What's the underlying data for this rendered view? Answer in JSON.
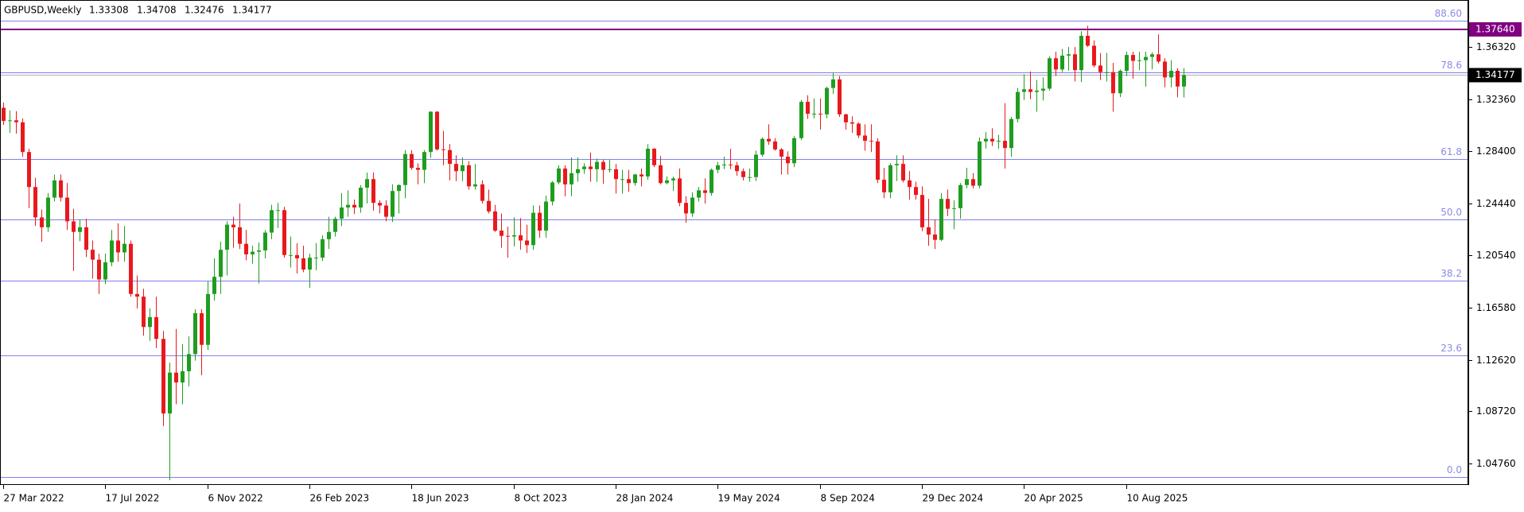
{
  "chart_data": {
    "type": "candlestick",
    "title": "GBPUSD,Weekly",
    "up_color": "#1f9d1f",
    "down_color": "#e8191c",
    "categories": [
      "27 Mar 2022",
      null,
      null,
      null,
      null,
      null,
      null,
      null,
      null,
      null,
      null,
      null,
      null,
      null,
      null,
      null,
      "17 Jul 2022",
      null,
      null,
      null,
      null,
      null,
      null,
      null,
      null,
      null,
      null,
      null,
      null,
      null,
      null,
      null,
      "6 Nov 2022",
      null,
      null,
      null,
      null,
      null,
      null,
      null,
      null,
      null,
      null,
      null,
      null,
      null,
      null,
      null,
      "26 Feb 2023",
      null,
      null,
      null,
      null,
      null,
      null,
      null,
      null,
      null,
      null,
      null,
      null,
      null,
      null,
      null,
      "18 Jun 2023",
      null,
      null,
      null,
      null,
      null,
      null,
      null,
      null,
      null,
      null,
      null,
      null,
      null,
      null,
      null,
      "8 Oct 2023",
      null,
      null,
      null,
      null,
      null,
      null,
      null,
      null,
      null,
      null,
      null,
      null,
      null,
      null,
      null,
      "28 Jan 2024",
      null,
      null,
      null,
      null,
      null,
      null,
      null,
      null,
      null,
      null,
      null,
      null,
      null,
      null,
      null,
      "19 May 2024",
      null,
      null,
      null,
      null,
      null,
      null,
      null,
      null,
      null,
      null,
      null,
      null,
      null,
      null,
      null,
      "8 Sep 2024",
      null,
      null,
      null,
      null,
      null,
      null,
      null,
      null,
      null,
      null,
      null,
      null,
      null,
      null,
      null,
      "29 Dec 2024",
      null,
      null,
      null,
      null,
      null,
      null,
      null,
      null,
      null,
      null,
      null,
      null,
      null,
      null,
      null,
      "20 Apr 2025",
      null,
      null,
      null,
      null,
      null,
      null,
      null,
      null,
      null,
      null,
      null,
      null,
      null,
      null,
      null,
      "10 Aug 2025",
      null,
      null,
      null,
      null,
      null,
      null,
      null,
      null,
      null
    ],
    "open": [
      1.317,
      1.307,
      1.3075,
      1.306,
      1.2835,
      1.257,
      1.234,
      1.2265,
      1.249,
      1.262,
      1.249,
      1.231,
      1.223,
      1.2265,
      1.2095,
      1.202,
      1.187,
      1.2,
      1.2165,
      1.2075,
      1.214,
      1.176,
      1.174,
      1.151,
      1.1585,
      1.142,
      1.0855,
      1.1165,
      1.109,
      1.1175,
      1.1305,
      1.1615,
      1.1375,
      1.176,
      1.189,
      1.2095,
      1.2285,
      1.2265,
      1.214,
      1.206,
      1.208,
      1.209,
      1.2225,
      1.2395,
      1.2395,
      1.2055,
      1.2055,
      1.203,
      1.1945,
      1.2035,
      1.2035,
      1.2175,
      1.223,
      1.233,
      1.2415,
      1.2435,
      1.2415,
      1.2565,
      1.263,
      1.245,
      1.243,
      1.2345,
      1.254,
      1.2585,
      1.282,
      1.2715,
      1.27,
      1.2835,
      1.314,
      1.2855,
      1.285,
      1.2745,
      1.269,
      1.2735,
      1.2575,
      1.259,
      1.2465,
      1.2385,
      1.224,
      1.22,
      1.2195,
      1.2205,
      1.2165,
      1.213,
      1.2375,
      1.224,
      1.246,
      1.2605,
      1.271,
      1.259,
      1.2675,
      1.2705,
      1.2725,
      1.2705,
      1.276,
      1.27,
      1.2705,
      1.263,
      1.263,
      1.26,
      1.2665,
      1.265,
      1.286,
      1.2735,
      1.26,
      1.262,
      1.2635,
      1.245,
      1.237,
      1.249,
      1.2545,
      1.2525,
      1.27,
      1.2735,
      1.274,
      1.2735,
      1.269,
      1.2645,
      1.2645,
      1.2815,
      1.2935,
      1.2915,
      1.2855,
      1.28,
      1.275,
      1.294,
      1.3215,
      1.3125,
      1.3125,
      1.312,
      1.332,
      1.3385,
      1.312,
      1.306,
      1.305,
      1.296,
      1.292,
      1.2915,
      1.2625,
      1.253,
      1.2735,
      1.2745,
      1.262,
      1.257,
      1.251,
      1.2265,
      1.221,
      1.217,
      1.248,
      1.2405,
      1.241,
      1.2585,
      1.263,
      1.258,
      1.2915,
      1.2935,
      1.2915,
      1.292,
      1.2865,
      1.3085,
      1.329,
      1.331,
      1.329,
      1.33,
      1.3315,
      1.3545,
      1.346,
      1.3565,
      1.3575,
      1.3455,
      1.3715,
      1.364,
      1.349,
      1.344,
      1.344,
      1.328,
      1.345,
      1.357,
      1.3525,
      1.353,
      1.3555,
      1.3575,
      1.352,
      1.34,
      1.345,
      1.33308
    ],
    "high": [
      1.321,
      1.315,
      1.3145,
      1.309,
      1.286,
      1.264,
      1.24,
      1.2525,
      1.2665,
      1.2665,
      1.26,
      1.2405,
      1.2325,
      1.233,
      1.2165,
      1.2065,
      1.2065,
      1.2245,
      1.2295,
      1.2275,
      1.2165,
      1.19,
      1.18,
      1.165,
      1.174,
      1.148,
      1.124,
      1.1495,
      1.138,
      1.144,
      1.1645,
      1.1645,
      1.1855,
      1.203,
      1.2155,
      1.231,
      1.2345,
      1.2445,
      1.2245,
      1.2125,
      1.215,
      1.2245,
      1.2435,
      1.245,
      1.242,
      1.2195,
      1.2145,
      1.2125,
      1.2065,
      1.2145,
      1.2205,
      1.2345,
      1.2345,
      1.2525,
      1.2545,
      1.2475,
      1.2585,
      1.268,
      1.268,
      1.247,
      1.247,
      1.259,
      1.259,
      1.285,
      1.285,
      1.275,
      1.285,
      1.3145,
      1.3145,
      1.2995,
      1.2895,
      1.281,
      1.2795,
      1.2765,
      1.2745,
      1.262,
      1.255,
      1.2435,
      1.237,
      1.227,
      1.234,
      1.2335,
      1.2285,
      1.243,
      1.243,
      1.2505,
      1.2615,
      1.2735,
      1.2735,
      1.2795,
      1.2795,
      1.275,
      1.283,
      1.2785,
      1.2775,
      1.2775,
      1.2745,
      1.27,
      1.27,
      1.267,
      1.271,
      1.2895,
      1.2865,
      1.2805,
      1.265,
      1.265,
      1.271,
      1.25,
      1.253,
      1.257,
      1.2635,
      1.271,
      1.276,
      1.28,
      1.286,
      1.276,
      1.271,
      1.271,
      1.2845,
      1.2945,
      1.3045,
      1.294,
      1.2865,
      1.284,
      1.2955,
      1.323,
      1.3265,
      1.324,
      1.324,
      1.333,
      1.3435,
      1.341,
      1.3125,
      1.3105,
      1.306,
      1.3045,
      1.3045,
      1.294,
      1.2715,
      1.275,
      1.281,
      1.281,
      1.269,
      1.261,
      1.2575,
      1.248,
      1.2325,
      1.2525,
      1.255,
      1.247,
      1.26,
      1.2715,
      1.2675,
      1.2945,
      1.2985,
      1.3015,
      1.2965,
      1.3205,
      1.31,
      1.332,
      1.3425,
      1.3445,
      1.338,
      1.34,
      1.356,
      1.3595,
      1.3615,
      1.363,
      1.363,
      1.375,
      1.379,
      1.368,
      1.3585,
      1.3585,
      1.351,
      1.346,
      1.3595,
      1.3595,
      1.3595,
      1.3595,
      1.359,
      1.3726,
      1.3545,
      1.353,
      1.347,
      1.34708
    ],
    "low": [
      1.304,
      1.298,
      1.2975,
      1.28,
      1.241,
      1.2275,
      1.2155,
      1.223,
      1.246,
      1.246,
      1.2245,
      1.1935,
      1.216,
      1.204,
      1.1875,
      1.176,
      1.1835,
      1.197,
      1.2005,
      1.2005,
      1.174,
      1.165,
      1.1445,
      1.1405,
      1.135,
      1.076,
      1.035,
      1.0925,
      1.0925,
      1.106,
      1.1255,
      1.1145,
      1.1335,
      1.171,
      1.176,
      1.19,
      1.211,
      1.21,
      1.2015,
      1.199,
      1.184,
      1.203,
      1.2175,
      1.226,
      1.2035,
      1.196,
      1.1915,
      1.1925,
      1.1805,
      1.194,
      1.201,
      1.21,
      1.2195,
      1.2275,
      1.2345,
      1.2365,
      1.2375,
      1.2445,
      1.239,
      1.237,
      1.231,
      1.2305,
      1.237,
      1.2485,
      1.27,
      1.259,
      1.26,
      1.279,
      1.2845,
      1.2735,
      1.262,
      1.2615,
      1.2615,
      1.255,
      1.255,
      1.2445,
      1.237,
      1.223,
      1.211,
      1.2035,
      1.212,
      1.2095,
      1.207,
      1.2095,
      1.2185,
      1.2185,
      1.243,
      1.259,
      1.25,
      1.25,
      1.261,
      1.267,
      1.261,
      1.261,
      1.2595,
      1.268,
      1.252,
      1.252,
      1.2535,
      1.258,
      1.2575,
      1.2625,
      1.272,
      1.259,
      1.259,
      1.254,
      1.2425,
      1.23,
      1.2345,
      1.246,
      1.2445,
      1.2505,
      1.2675,
      1.2705,
      1.2705,
      1.2655,
      1.262,
      1.261,
      1.2615,
      1.28,
      1.289,
      1.2845,
      1.2665,
      1.2665,
      1.272,
      1.2925,
      1.3085,
      1.309,
      1.3005,
      1.309,
      1.3275,
      1.31,
      1.3005,
      1.298,
      1.294,
      1.2845,
      1.2835,
      1.26,
      1.2485,
      1.2485,
      1.2615,
      1.2605,
      1.2475,
      1.2475,
      1.2235,
      1.2125,
      1.21,
      1.216,
      1.235,
      1.225,
      1.233,
      1.256,
      1.256,
      1.256,
      1.286,
      1.288,
      1.286,
      1.271,
      1.28,
      1.306,
      1.323,
      1.3235,
      1.314,
      1.3225,
      1.33,
      1.341,
      1.344,
      1.345,
      1.337,
      1.3365,
      1.363,
      1.3475,
      1.338,
      1.337,
      1.314,
      1.325,
      1.341,
      1.339,
      1.3455,
      1.333,
      1.346,
      1.3505,
      1.3325,
      1.3325,
      1.325,
      1.32476
    ],
    "close": [
      1.307,
      1.3075,
      1.306,
      1.2835,
      1.257,
      1.234,
      1.2265,
      1.249,
      1.262,
      1.249,
      1.231,
      1.223,
      1.2265,
      1.2095,
      1.202,
      1.187,
      1.2,
      1.2165,
      1.2075,
      1.214,
      1.176,
      1.174,
      1.151,
      1.1585,
      1.142,
      1.0855,
      1.1165,
      1.109,
      1.1175,
      1.1305,
      1.1615,
      1.1375,
      1.176,
      1.189,
      1.2095,
      1.2285,
      1.2265,
      1.214,
      1.206,
      1.208,
      1.209,
      1.2225,
      1.2395,
      1.2395,
      1.2055,
      1.2055,
      1.203,
      1.1945,
      1.2035,
      1.2035,
      1.2175,
      1.223,
      1.233,
      1.2415,
      1.2435,
      1.2415,
      1.2565,
      1.263,
      1.245,
      1.243,
      1.2345,
      1.254,
      1.2585,
      1.282,
      1.2715,
      1.27,
      1.2835,
      1.314,
      1.2855,
      1.285,
      1.2745,
      1.269,
      1.2735,
      1.2575,
      1.259,
      1.2465,
      1.2385,
      1.224,
      1.22,
      1.2195,
      1.2205,
      1.2165,
      1.213,
      1.2375,
      1.224,
      1.246,
      1.2605,
      1.271,
      1.259,
      1.2675,
      1.2705,
      1.2725,
      1.2705,
      1.276,
      1.27,
      1.2705,
      1.263,
      1.263,
      1.26,
      1.2665,
      1.265,
      1.286,
      1.2735,
      1.26,
      1.262,
      1.2635,
      1.245,
      1.237,
      1.249,
      1.2545,
      1.2525,
      1.27,
      1.2735,
      1.274,
      1.2735,
      1.269,
      1.2645,
      1.2645,
      1.2815,
      1.2935,
      1.2915,
      1.2855,
      1.28,
      1.275,
      1.294,
      1.3215,
      1.3125,
      1.3125,
      1.312,
      1.332,
      1.3385,
      1.312,
      1.306,
      1.305,
      1.296,
      1.292,
      1.2915,
      1.2625,
      1.253,
      1.2735,
      1.2745,
      1.262,
      1.257,
      1.251,
      1.2265,
      1.221,
      1.217,
      1.248,
      1.2405,
      1.241,
      1.2585,
      1.263,
      1.258,
      1.2915,
      1.2935,
      1.2915,
      1.292,
      1.2865,
      1.3085,
      1.329,
      1.331,
      1.329,
      1.33,
      1.3315,
      1.3545,
      1.346,
      1.3565,
      1.3575,
      1.3455,
      1.3715,
      1.364,
      1.349,
      1.344,
      1.344,
      1.328,
      1.345,
      1.357,
      1.3525,
      1.353,
      1.3555,
      1.3575,
      1.352,
      1.34,
      1.345,
      1.33308,
      1.34177
    ],
    "ylim": [
      1.0314,
      1.3986
    ],
    "yticks": [
      {
        "value": 1.0476,
        "label": "1.04760"
      },
      {
        "value": 1.0872,
        "label": "1.08720"
      },
      {
        "value": 1.1262,
        "label": "1.12620"
      },
      {
        "value": 1.1658,
        "label": "1.16580"
      },
      {
        "value": 1.2054,
        "label": "1.20540"
      },
      {
        "value": 1.2444,
        "label": "1.24440"
      },
      {
        "value": 1.284,
        "label": "1.28400"
      },
      {
        "value": 1.3236,
        "label": "1.32360"
      },
      {
        "value": 1.3632,
        "label": "1.36320"
      }
    ],
    "fib_color": "#8080f0",
    "fib_levels": [
      {
        "price": 1.3831,
        "label": "88.60"
      },
      {
        "price": 1.3441,
        "label": "78.6"
      },
      {
        "price": 1.2785,
        "label": "61.8"
      },
      {
        "price": 1.2325,
        "label": "50.0"
      },
      {
        "price": 1.1864,
        "label": "38.2"
      },
      {
        "price": 1.1294,
        "label": "23.6"
      },
      {
        "price": 1.0373,
        "label": "0.0"
      }
    ],
    "level_line": {
      "value": 1.3764,
      "label": "1.37640",
      "color": "#800080"
    },
    "price_line": {
      "value": 1.34177,
      "label": "1.34177",
      "color": "#000000"
    }
  }
}
